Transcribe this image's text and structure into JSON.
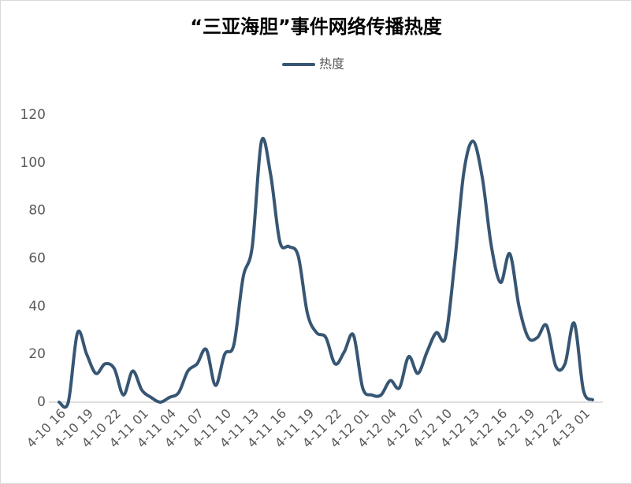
{
  "chart_data": {
    "type": "line",
    "title": "“三亚海胆”事件网络传播热度",
    "categories": [
      "4-10 16",
      null,
      null,
      "4-10 19",
      null,
      null,
      "4-10 22",
      null,
      null,
      "4-11 01",
      null,
      null,
      "4-11 04",
      null,
      null,
      "4-11 07",
      null,
      null,
      "4-11 10",
      null,
      null,
      "4-11 13",
      null,
      null,
      "4-11 16",
      null,
      null,
      "4-11 19",
      null,
      null,
      "4-11 22",
      null,
      null,
      "4-12 01",
      null,
      null,
      "4-12 04",
      null,
      null,
      "4-12 07",
      null,
      null,
      "4-12 10",
      null,
      null,
      "4-12 13",
      null,
      null,
      "4-12 16",
      null,
      null,
      "4-12 19",
      null,
      null,
      "4-12 22",
      null,
      null,
      "4-13 01",
      null
    ],
    "series": [
      {
        "name": "热度",
        "color": "#375673",
        "values": [
          0,
          0,
          29,
          20,
          12,
          16,
          14,
          3,
          13,
          5,
          2,
          0,
          2,
          4,
          13,
          16,
          22,
          7,
          20,
          24,
          52,
          65,
          109,
          95,
          67,
          65,
          61,
          37,
          29,
          27,
          16,
          21,
          28,
          6,
          3,
          3,
          9,
          6,
          19,
          12,
          21,
          29,
          27,
          58,
          96,
          109,
          94,
          65,
          50,
          62,
          40,
          27,
          27,
          32,
          15,
          16,
          33,
          5,
          1
        ]
      }
    ],
    "ylim": [
      0,
      120
    ],
    "yticks": [
      0,
      20,
      40,
      60,
      80,
      100,
      120
    ],
    "legend": "top",
    "grid": false
  }
}
